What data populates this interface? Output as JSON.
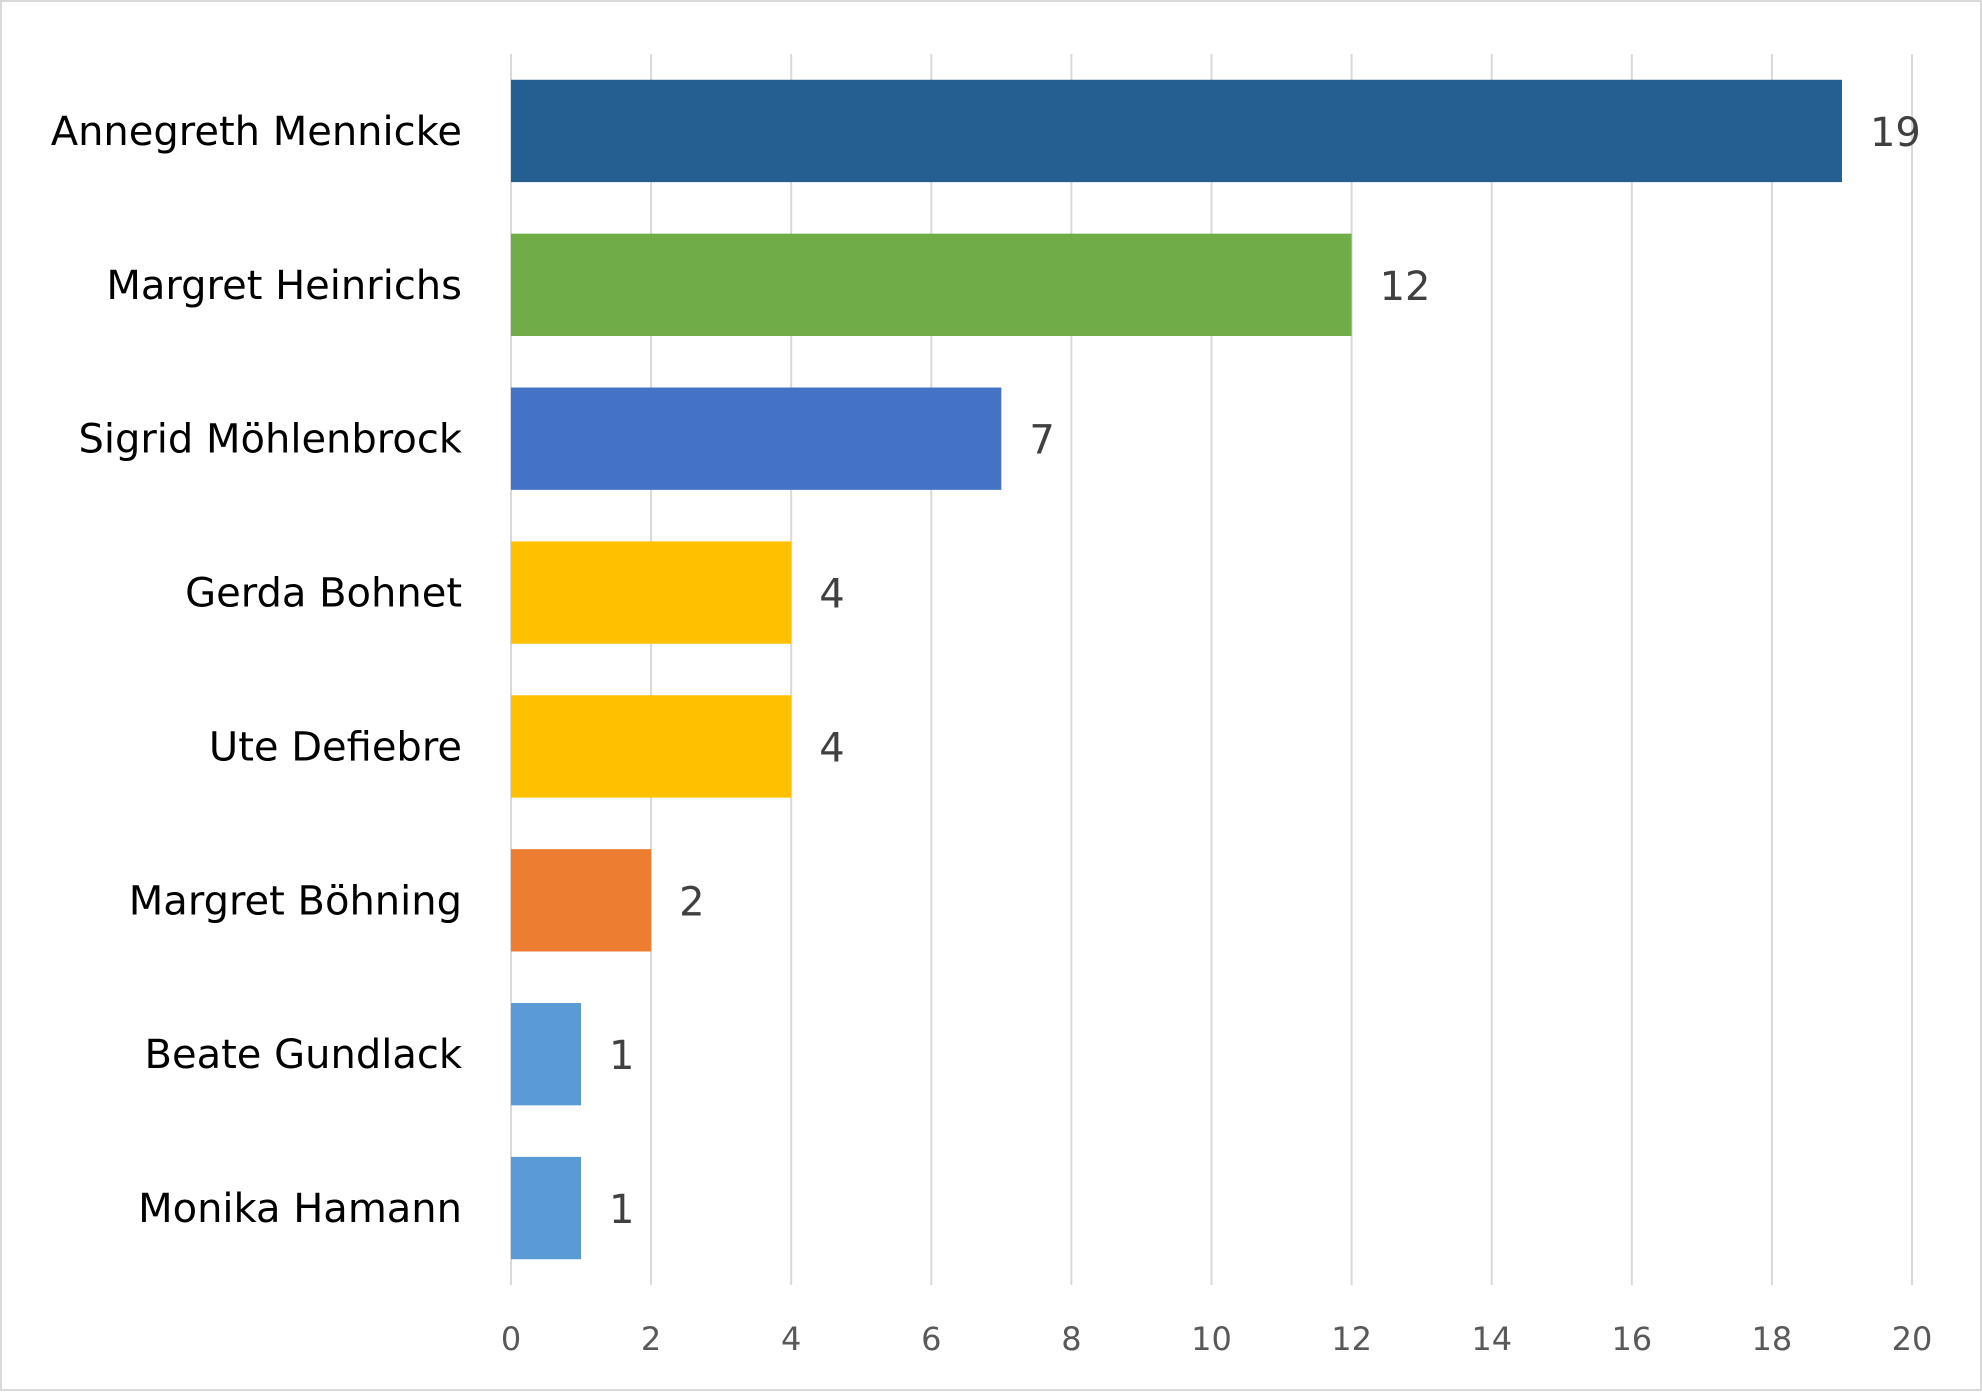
{
  "chart_data": {
    "type": "bar",
    "orientation": "horizontal",
    "title": "",
    "xlabel": "",
    "ylabel": "",
    "xlim": [
      0,
      20
    ],
    "x_ticks": [
      0,
      2,
      4,
      6,
      8,
      10,
      12,
      14,
      16,
      18,
      20
    ],
    "grid": true,
    "legend": "none",
    "bars": [
      {
        "category": "Annegreth Mennicke",
        "value": 19,
        "value_label": "19",
        "color": "#255E91"
      },
      {
        "category": "Margret Heinrichs",
        "value": 12,
        "value_label": "12",
        "color": "#70AD47"
      },
      {
        "category": "Sigrid Möhlenbrock",
        "value": 7,
        "value_label": "7",
        "color": "#4472C4"
      },
      {
        "category": "Gerda Bohnet",
        "value": 4,
        "value_label": "4",
        "color": "#FFC000"
      },
      {
        "category": "Ute Defiebre",
        "value": 4,
        "value_label": "4",
        "color": "#FFC000"
      },
      {
        "category": "Margret Böhning",
        "value": 2,
        "value_label": "2",
        "color": "#ED7D31"
      },
      {
        "category": "Beate Gundlack",
        "value": 1,
        "value_label": "1",
        "color": "#5B9BD5"
      },
      {
        "category": "Monika Hamann",
        "value": 1,
        "value_label": "1",
        "color": "#5B9BD5"
      }
    ]
  }
}
